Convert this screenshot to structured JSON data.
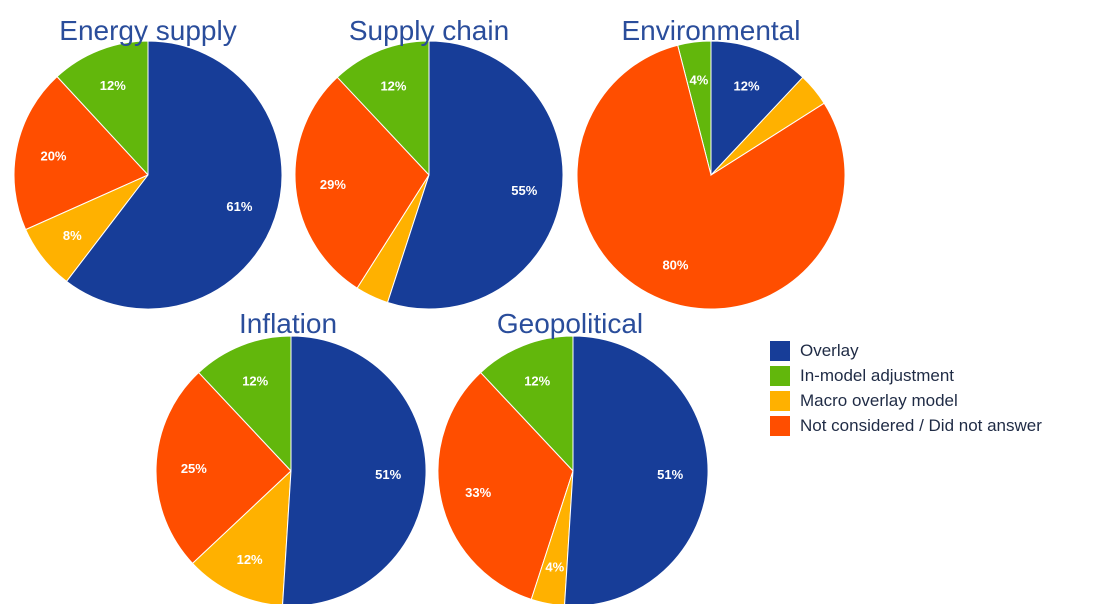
{
  "colors": {
    "title": "#2a4d9b",
    "label_text": "#ffffff",
    "legend_text": "#1f2b45",
    "overlay": "#173d98",
    "in_model_adjustment": "#62b70c",
    "macro_overlay_model": "#ffb100",
    "not_considered": "#ff4e00"
  },
  "legend": {
    "items": [
      {
        "key": "overlay",
        "label": "Overlay",
        "color": "#173d98"
      },
      {
        "key": "in_model_adjustment",
        "label": "In-model adjustment",
        "color": "#62b70c"
      },
      {
        "key": "macro_overlay_model",
        "label": "Macro overlay model",
        "color": "#ffb100"
      },
      {
        "key": "not_considered",
        "label": "Not considered / Did not answer",
        "color": "#ff4e00"
      }
    ]
  },
  "chart_data": [
    {
      "type": "pie",
      "title": "Energy supply",
      "slices": [
        {
          "name": "Overlay",
          "value": 61,
          "label": "61%",
          "color": "#173d98"
        },
        {
          "name": "Macro overlay model",
          "value": 8,
          "label": "8%",
          "color": "#ffb100"
        },
        {
          "name": "Not considered / Did not answer",
          "value": 20,
          "label": "20%",
          "color": "#ff4e00"
        },
        {
          "name": "In-model adjustment",
          "value": 12,
          "label": "12%",
          "color": "#62b70c"
        }
      ]
    },
    {
      "type": "pie",
      "title": "Supply chain",
      "slices": [
        {
          "name": "Overlay",
          "value": 55,
          "label": "55%",
          "color": "#173d98"
        },
        {
          "name": "Macro overlay model",
          "value": 4,
          "label": "",
          "color": "#ffb100"
        },
        {
          "name": "Not considered / Did not answer",
          "value": 29,
          "label": "29%",
          "color": "#ff4e00"
        },
        {
          "name": "In-model adjustment",
          "value": 12,
          "label": "12%",
          "color": "#62b70c"
        }
      ]
    },
    {
      "type": "pie",
      "title": "Environmental",
      "slices": [
        {
          "name": "Overlay",
          "value": 12,
          "label": "12%",
          "color": "#173d98"
        },
        {
          "name": "Macro overlay model",
          "value": 4,
          "label": "",
          "color": "#ffb100"
        },
        {
          "name": "Not considered / Did not answer",
          "value": 80,
          "label": "80%",
          "color": "#ff4e00"
        },
        {
          "name": "In-model adjustment",
          "value": 4,
          "label": "4%",
          "color": "#62b70c"
        }
      ]
    },
    {
      "type": "pie",
      "title": "Inflation",
      "slices": [
        {
          "name": "Overlay",
          "value": 51,
          "label": "51%",
          "color": "#173d98"
        },
        {
          "name": "Macro overlay model",
          "value": 12,
          "label": "12%",
          "color": "#ffb100"
        },
        {
          "name": "Not considered / Did not answer",
          "value": 25,
          "label": "25%",
          "color": "#ff4e00"
        },
        {
          "name": "In-model adjustment",
          "value": 12,
          "label": "12%",
          "color": "#62b70c"
        }
      ]
    },
    {
      "type": "pie",
      "title": "Geopolitical",
      "slices": [
        {
          "name": "Overlay",
          "value": 51,
          "label": "51%",
          "color": "#173d98"
        },
        {
          "name": "Macro overlay model",
          "value": 4,
          "label": "4%",
          "color": "#ffb100"
        },
        {
          "name": "Not considered / Did not answer",
          "value": 33,
          "label": "33%",
          "color": "#ff4e00"
        },
        {
          "name": "In-model adjustment",
          "value": 12,
          "label": "12%",
          "color": "#62b70c"
        }
      ]
    }
  ]
}
